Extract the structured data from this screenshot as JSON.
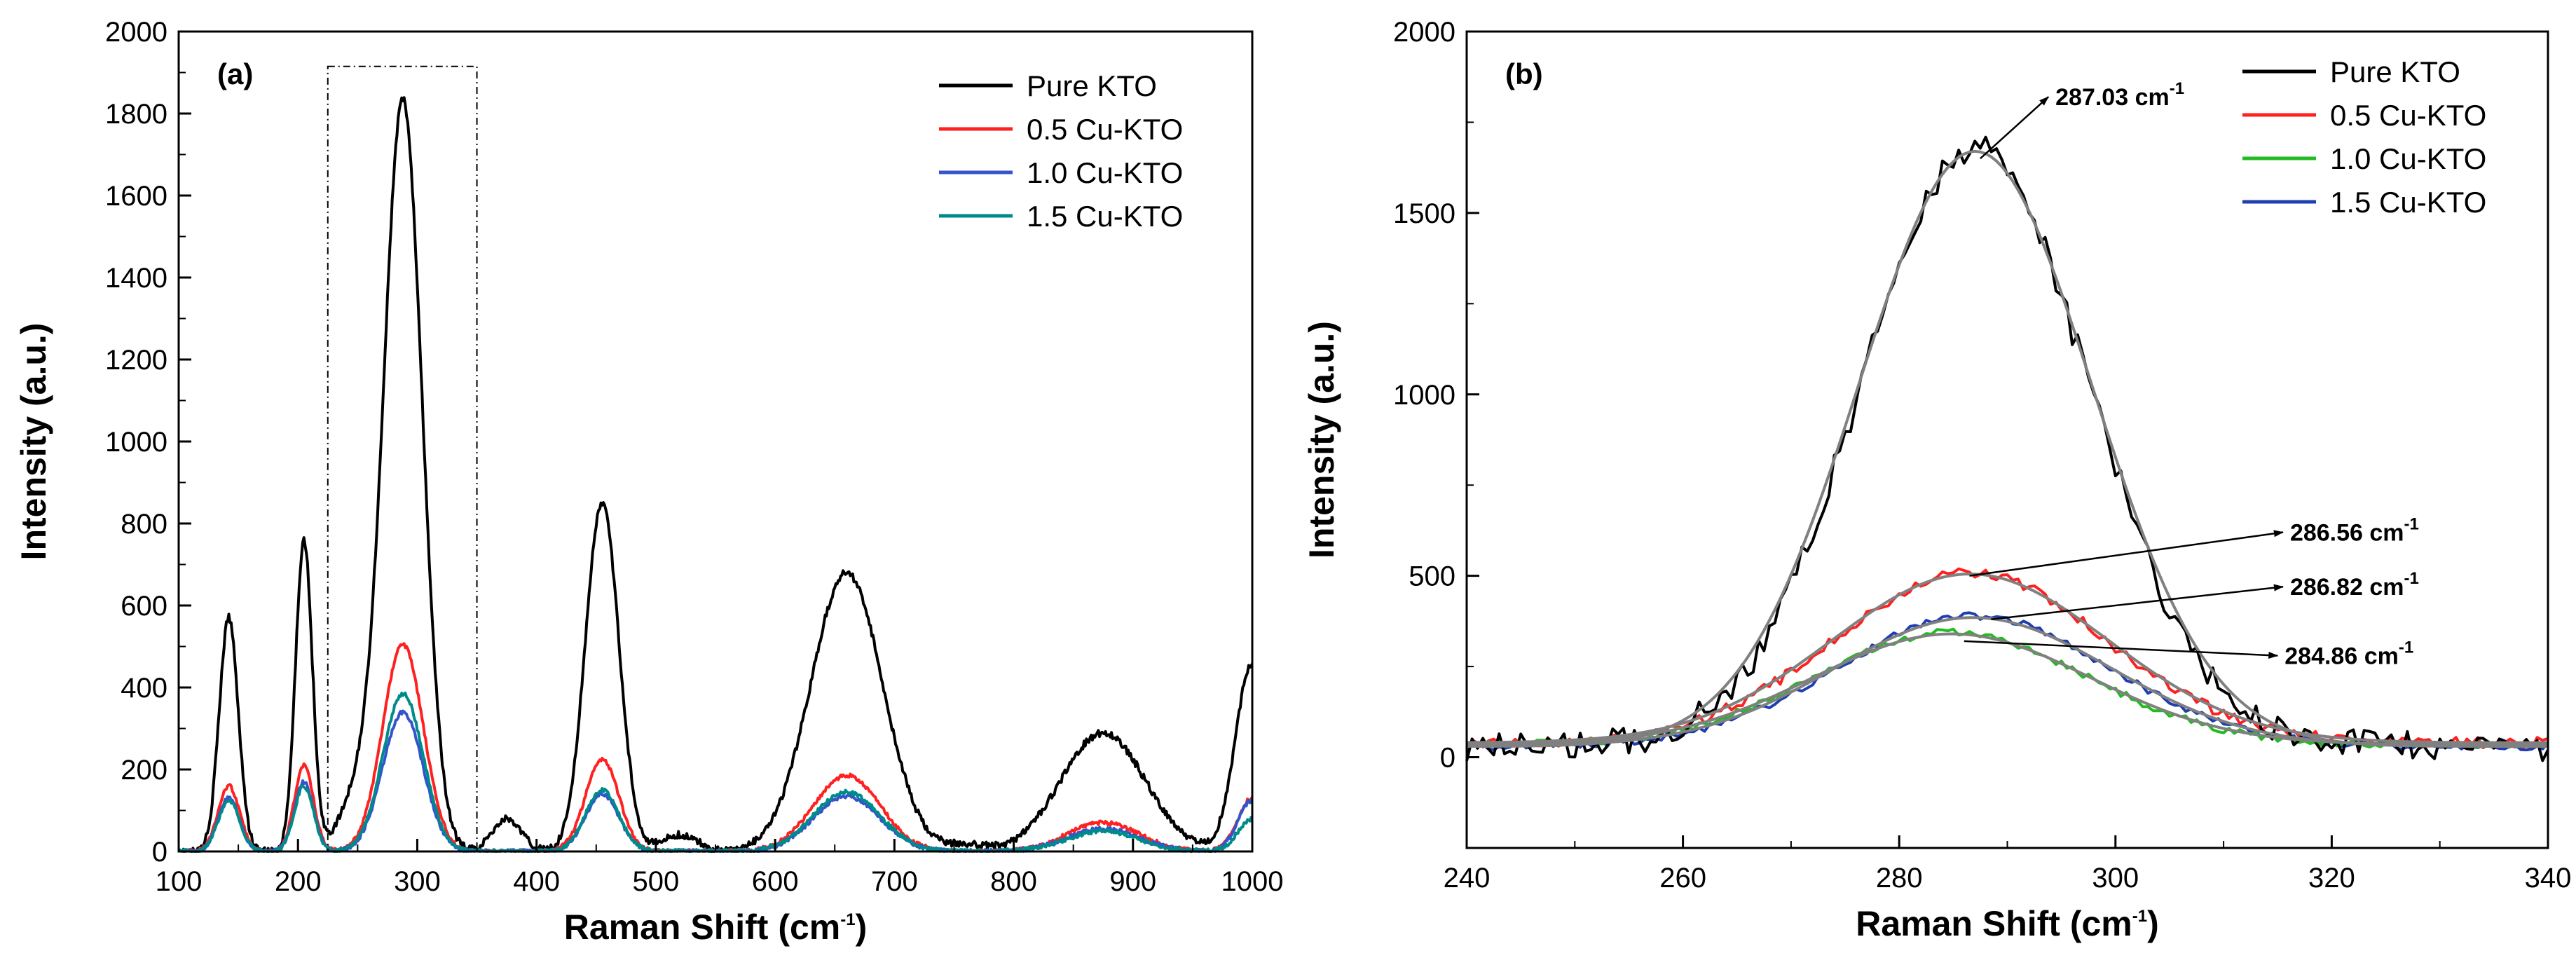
{
  "chart_data": [
    {
      "type": "line",
      "panel_label": "(a)",
      "xlabel": "Raman  Shift (cm",
      "xlabel_sup": "-1",
      "xlabel_end": ")",
      "ylabel": "Intensity (a.u.)",
      "xlim": [
        100,
        1000
      ],
      "ylim": [
        0,
        2000
      ],
      "xticks": [
        100,
        200,
        300,
        400,
        500,
        600,
        700,
        800,
        900,
        1000
      ],
      "yticks": [
        0,
        200,
        400,
        600,
        800,
        1000,
        1200,
        1400,
        1600,
        1800,
        2000
      ],
      "highlight_box": [
        225,
        350
      ],
      "legend_position": "top-right",
      "series": [
        {
          "name": "Pure    KTO",
          "color": "#000000",
          "peaks": [
            [
              142,
              570,
              8
            ],
            [
              205,
              760,
              7
            ],
            [
              250,
              130,
              15
            ],
            [
              288,
              1830,
              16
            ],
            [
              375,
              80,
              12
            ],
            [
              455,
              850,
              14
            ],
            [
              520,
              40,
              15
            ],
            [
              660,
              680,
              30
            ],
            [
              760,
              15,
              15
            ],
            [
              875,
              290,
              35
            ],
            [
              1000,
              460,
              14
            ]
          ]
        },
        {
          "name": "0.5 Cu-KTO",
          "color": "#ff2020",
          "peaks": [
            [
              142,
              160,
              9
            ],
            [
              205,
              210,
              8
            ],
            [
              288,
              505,
              17
            ],
            [
              455,
              225,
              14
            ],
            [
              660,
              185,
              28
            ],
            [
              875,
              70,
              30
            ],
            [
              1000,
              130,
              12
            ]
          ]
        },
        {
          "name": "1.0 Cu-KTO",
          "color": "#3355cc",
          "peaks": [
            [
              142,
              130,
              9
            ],
            [
              205,
              170,
              8
            ],
            [
              288,
              340,
              17
            ],
            [
              455,
              140,
              14
            ],
            [
              660,
              135,
              28
            ],
            [
              875,
              55,
              30
            ],
            [
              1000,
              125,
              12
            ]
          ]
        },
        {
          "name": "1.5 Cu-KTO",
          "color": "#008b8b",
          "peaks": [
            [
              142,
              125,
              9
            ],
            [
              205,
              160,
              8
            ],
            [
              288,
              385,
              17
            ],
            [
              455,
              150,
              14
            ],
            [
              660,
              145,
              28
            ],
            [
              875,
              50,
              30
            ],
            [
              1000,
              80,
              12
            ]
          ]
        }
      ]
    },
    {
      "type": "line",
      "panel_label": "(b)",
      "xlabel": "Raman Shift (cm",
      "xlabel_sup": "-1",
      "xlabel_end": ")",
      "ylabel": "Intensity (a.u.)",
      "xlim": [
        240,
        340
      ],
      "ylim": [
        -250,
        2000
      ],
      "xticks": [
        240,
        260,
        280,
        300,
        320,
        340
      ],
      "yticks": [
        0,
        500,
        1000,
        1500,
        2000
      ],
      "legend_position": "top-right",
      "fit_color": "#808080",
      "series": [
        {
          "name": "Pure    KTO",
          "color": "#000000",
          "center": 287.03,
          "amp": 1650,
          "width": 10.5,
          "base": 30,
          "noise": 40,
          "fit_center": 287.03,
          "fit_amp": 1640,
          "fit_width": 10.8
        },
        {
          "name": "0.5 Cu-KTO",
          "color": "#ff2020",
          "center": 286.56,
          "amp": 470,
          "width": 12.5,
          "base": 40,
          "noise": 15,
          "fit_center": 286.56,
          "fit_amp": 465,
          "fit_width": 12.8
        },
        {
          "name": "1.0 Cu-KTO",
          "color": "#22bb22",
          "center": 284.86,
          "amp": 310,
          "width": 12.5,
          "base": 35,
          "noise": 10,
          "fit_center": 284.86,
          "fit_amp": 305,
          "fit_width": 12.8
        },
        {
          "name": "1.5 Cu-KTO",
          "color": "#1f3fb0",
          "center": 286.82,
          "amp": 360,
          "width": 12.5,
          "base": 30,
          "noise": 10,
          "fit_center": 286.82,
          "fit_amp": 355,
          "fit_width": 12.8
        }
      ],
      "annotations": [
        {
          "text": "287.03 cm",
          "sup": "-1",
          "from": [
            287.5,
            1650
          ],
          "to": [
            293.8,
            1820
          ]
        },
        {
          "text": "286.56 cm",
          "sup": "-1",
          "from": [
            286.5,
            500
          ],
          "to": [
            315.5,
            620
          ]
        },
        {
          "text": "286.82 cm",
          "sup": "-1",
          "from": [
            288.5,
            380
          ],
          "to": [
            315.5,
            470
          ]
        },
        {
          "text": "284.86 cm",
          "sup": "-1",
          "from": [
            286.0,
            320
          ],
          "to": [
            315.0,
            280
          ]
        }
      ]
    }
  ]
}
